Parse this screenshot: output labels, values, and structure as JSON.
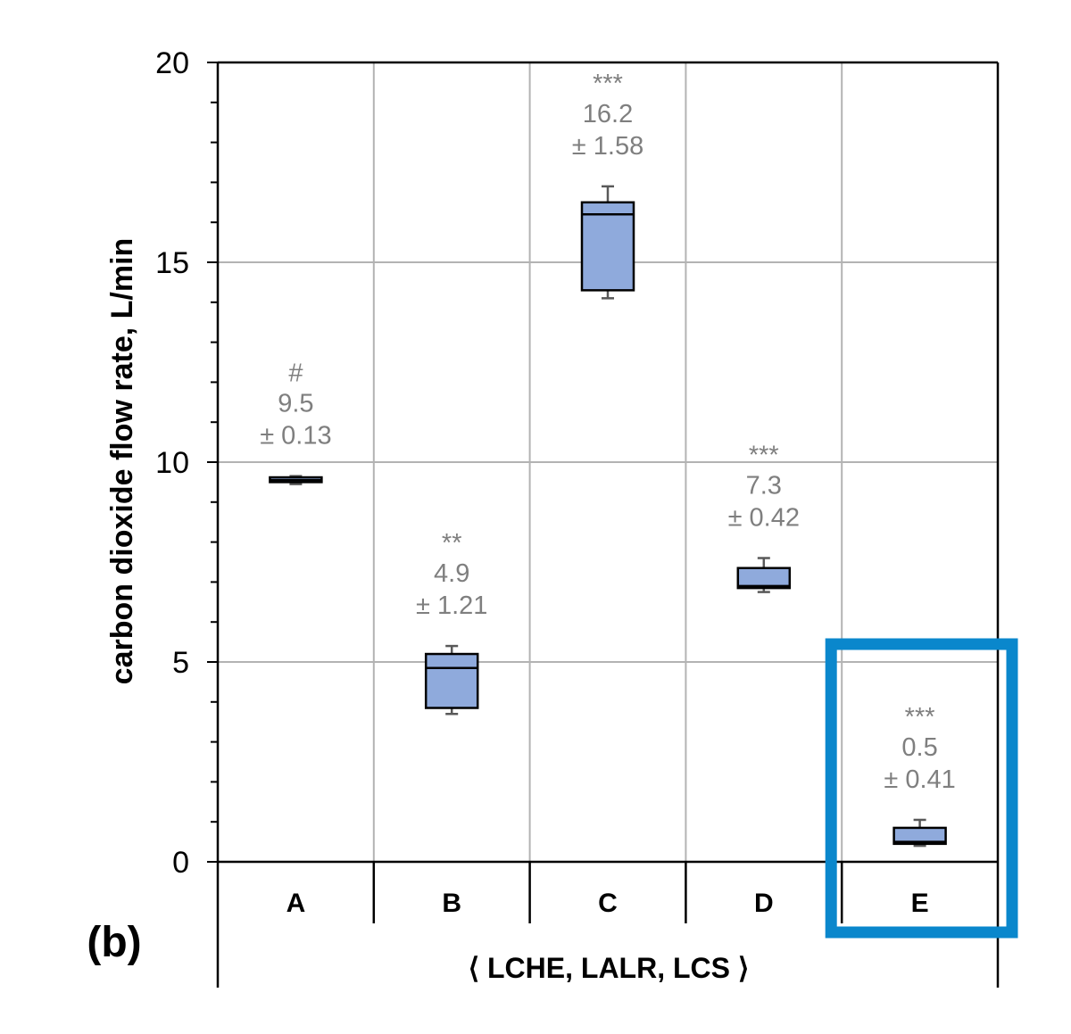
{
  "chart_data": {
    "type": "box",
    "ylabel": "carbon dioxide flow rate, L/min",
    "xlabel": "⟨ LCHE, LALR, LCS ⟩",
    "panel_label": "(b)",
    "ylim": [
      0,
      20
    ],
    "yticks": [
      "0",
      "5",
      "10",
      "15",
      "20"
    ],
    "grid": true,
    "box_color": "#8faadc",
    "annotation_color": "#7f7f7f",
    "highlight_color": "#0a87cc",
    "highlight_category": "E",
    "categories": [
      "A",
      "B",
      "C",
      "D",
      "E"
    ],
    "boxes": [
      {
        "category": "A",
        "min": 9.45,
        "q1": 9.5,
        "median": 9.55,
        "q3": 9.62,
        "max": 9.65,
        "significance": "#",
        "mean": "9.5",
        "sd": "± 0.13"
      },
      {
        "category": "B",
        "min": 3.7,
        "q1": 3.85,
        "median": 4.85,
        "q3": 5.2,
        "max": 5.4,
        "significance": "**",
        "mean": "4.9",
        "sd": "± 1.21"
      },
      {
        "category": "C",
        "min": 14.1,
        "q1": 14.3,
        "median": 16.2,
        "q3": 16.5,
        "max": 16.9,
        "significance": "***",
        "mean": "16.2",
        "sd": "± 1.58"
      },
      {
        "category": "D",
        "min": 6.75,
        "q1": 6.85,
        "median": 6.9,
        "q3": 7.35,
        "max": 7.6,
        "significance": "***",
        "mean": "7.3",
        "sd": "± 0.42"
      },
      {
        "category": "E",
        "min": 0.4,
        "q1": 0.45,
        "median": 0.5,
        "q3": 0.85,
        "max": 1.05,
        "significance": "***",
        "mean": "0.5",
        "sd": "± 0.41"
      }
    ]
  }
}
